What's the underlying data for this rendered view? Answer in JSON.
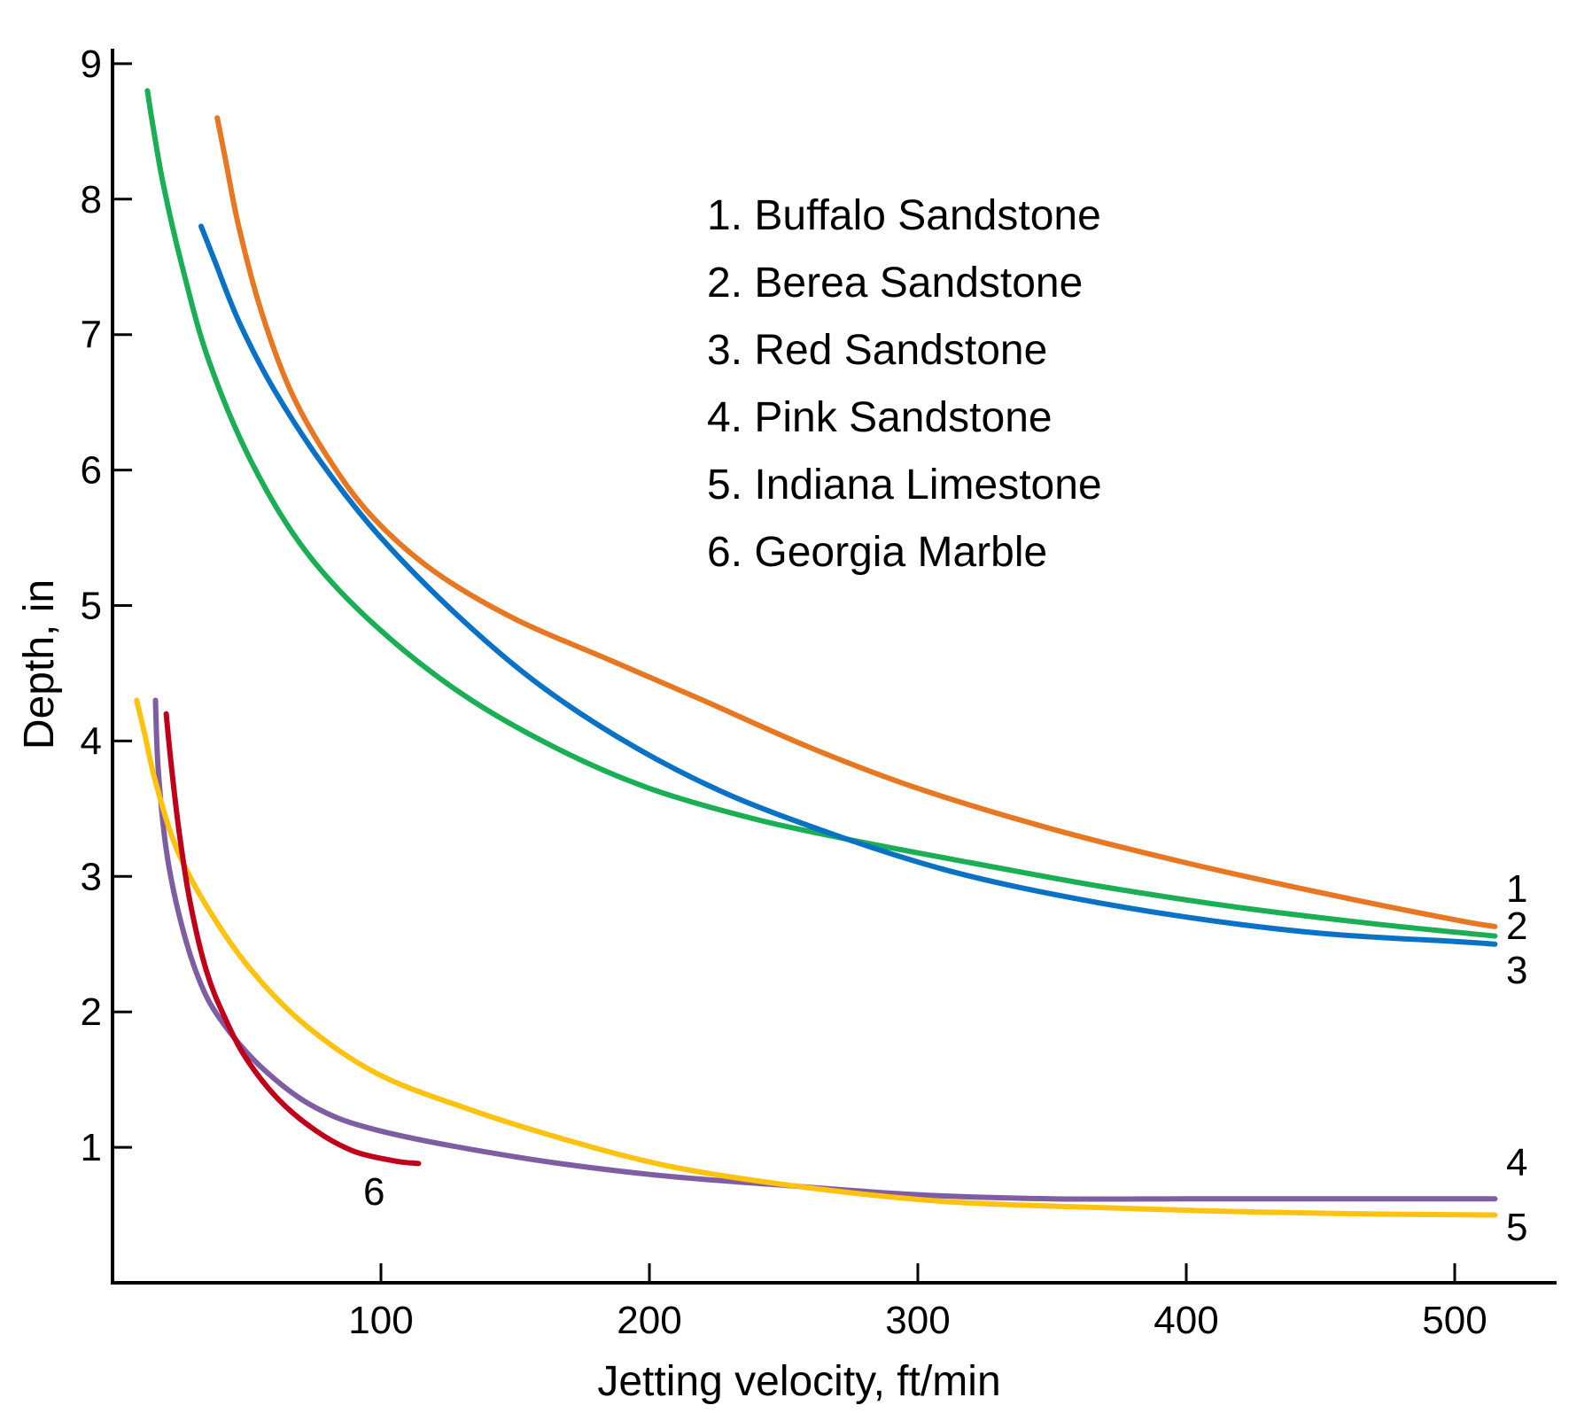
{
  "chart_data": {
    "type": "line",
    "title": "",
    "xlabel": "Jetting velocity, ft/min",
    "ylabel": "Depth, in",
    "xlim": [
      0,
      525
    ],
    "ylim": [
      0,
      9
    ],
    "xticks": [
      100,
      200,
      300,
      400,
      500
    ],
    "yticks": [
      1,
      2,
      3,
      4,
      5,
      6,
      7,
      8,
      9
    ],
    "grid": false,
    "legend_position": "top-center",
    "series": [
      {
        "name": "1. Buffalo Sandstone",
        "end_label": "1",
        "color": "#e87722",
        "points": [
          [
            39,
            8.6
          ],
          [
            42,
            8.3
          ],
          [
            47,
            7.8
          ],
          [
            55,
            7.2
          ],
          [
            66,
            6.6
          ],
          [
            80,
            6.1
          ],
          [
            97,
            5.65
          ],
          [
            120,
            5.25
          ],
          [
            150,
            4.9
          ],
          [
            185,
            4.6
          ],
          [
            220,
            4.3
          ],
          [
            260,
            3.95
          ],
          [
            300,
            3.65
          ],
          [
            350,
            3.35
          ],
          [
            400,
            3.1
          ],
          [
            450,
            2.88
          ],
          [
            500,
            2.68
          ],
          [
            515,
            2.63
          ]
        ]
      },
      {
        "name": "2. Berea Sandstone",
        "end_label": "2",
        "color": "#1aaf54",
        "points": [
          [
            13,
            8.8
          ],
          [
            15,
            8.55
          ],
          [
            19,
            8.1
          ],
          [
            26,
            7.5
          ],
          [
            36,
            6.8
          ],
          [
            52,
            6.05
          ],
          [
            72,
            5.4
          ],
          [
            98,
            4.85
          ],
          [
            130,
            4.35
          ],
          [
            165,
            3.95
          ],
          [
            200,
            3.65
          ],
          [
            240,
            3.42
          ],
          [
            280,
            3.25
          ],
          [
            320,
            3.1
          ],
          [
            370,
            2.92
          ],
          [
            420,
            2.77
          ],
          [
            470,
            2.65
          ],
          [
            515,
            2.56
          ]
        ]
      },
      {
        "name": "3. Red Sandstone",
        "end_label": "3",
        "color": "#0a72c4",
        "points": [
          [
            33,
            7.8
          ],
          [
            38,
            7.55
          ],
          [
            47,
            7.1
          ],
          [
            60,
            6.6
          ],
          [
            78,
            6.05
          ],
          [
            100,
            5.5
          ],
          [
            130,
            4.9
          ],
          [
            160,
            4.4
          ],
          [
            195,
            3.95
          ],
          [
            230,
            3.6
          ],
          [
            270,
            3.3
          ],
          [
            310,
            3.05
          ],
          [
            350,
            2.87
          ],
          [
            400,
            2.7
          ],
          [
            450,
            2.58
          ],
          [
            500,
            2.52
          ],
          [
            515,
            2.5
          ]
        ]
      },
      {
        "name": "4. Pink Sandstone",
        "end_label": "4",
        "color": "#7e5da3",
        "points": [
          [
            16,
            4.3
          ],
          [
            17,
            3.8
          ],
          [
            20,
            3.2
          ],
          [
            25,
            2.7
          ],
          [
            32,
            2.25
          ],
          [
            40,
            1.95
          ],
          [
            55,
            1.6
          ],
          [
            75,
            1.3
          ],
          [
            100,
            1.12
          ],
          [
            150,
            0.93
          ],
          [
            200,
            0.8
          ],
          [
            250,
            0.72
          ],
          [
            300,
            0.65
          ],
          [
            350,
            0.62
          ],
          [
            400,
            0.62
          ],
          [
            450,
            0.62
          ],
          [
            515,
            0.62
          ]
        ]
      },
      {
        "name": "5. Indiana Limestone",
        "end_label": "5",
        "color": "#ffc20e",
        "points": [
          [
            9,
            4.3
          ],
          [
            12,
            4.05
          ],
          [
            16,
            3.7
          ],
          [
            24,
            3.2
          ],
          [
            36,
            2.75
          ],
          [
            52,
            2.3
          ],
          [
            72,
            1.9
          ],
          [
            98,
            1.55
          ],
          [
            130,
            1.3
          ],
          [
            170,
            1.05
          ],
          [
            210,
            0.85
          ],
          [
            260,
            0.7
          ],
          [
            310,
            0.6
          ],
          [
            360,
            0.56
          ],
          [
            410,
            0.53
          ],
          [
            460,
            0.51
          ],
          [
            515,
            0.5
          ]
        ]
      },
      {
        "name": "6. Georgia Marble",
        "end_label": "6",
        "color": "#c0001a",
        "points": [
          [
            20,
            4.2
          ],
          [
            22,
            3.8
          ],
          [
            25,
            3.3
          ],
          [
            29,
            2.8
          ],
          [
            35,
            2.3
          ],
          [
            42,
            1.95
          ],
          [
            50,
            1.65
          ],
          [
            62,
            1.35
          ],
          [
            76,
            1.12
          ],
          [
            90,
            0.97
          ],
          [
            105,
            0.9
          ],
          [
            114,
            0.88
          ]
        ]
      }
    ]
  }
}
